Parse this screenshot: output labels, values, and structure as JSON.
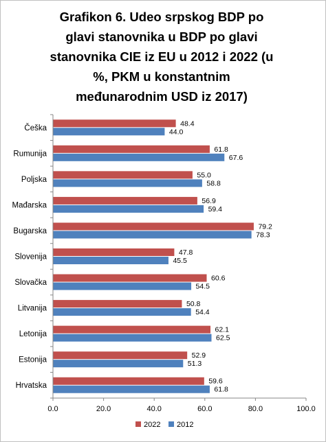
{
  "chart_data": {
    "type": "bar",
    "orientation": "horizontal",
    "title": "Grafikon 6. Udeo srpskog BDP po glavi stanovnika u BDP po glavi stanovnika CIE iz EU u 2012 i 2022 (u %, PKM u konstantnim međunarodnim USD iz 2017)",
    "title_lines": [
      "Grafikon 6. Udeo srpskog BDP po",
      "glavi stanovnika u BDP po glavi",
      "stanovnika CIE iz EU u 2012 i 2022 (u",
      "%, PKM u konstantnim",
      "međunarodnim USD iz 2017)"
    ],
    "categories": [
      "Češka",
      "Rumunija",
      "Poljska",
      "Mađarska",
      "Bugarska",
      "Slovenija",
      "Slovačka",
      "Litvanija",
      "Letonija",
      "Estonija",
      "Hrvatska"
    ],
    "series": [
      {
        "name": "2022",
        "color": "#c0504d",
        "values": [
          48.4,
          61.8,
          55.0,
          56.9,
          79.2,
          47.8,
          60.6,
          50.8,
          62.1,
          52.9,
          59.6
        ],
        "labels": [
          "48.4",
          "61.8",
          "55.0",
          "56.9",
          "79.2",
          "47.8",
          "60.6",
          "50.8",
          "62.1",
          "52.9",
          "59.6"
        ]
      },
      {
        "name": "2012",
        "color": "#4f81bd",
        "values": [
          44.0,
          67.6,
          58.8,
          59.4,
          78.3,
          45.5,
          54.5,
          54.4,
          62.5,
          51.3,
          61.8
        ],
        "labels": [
          "44.0",
          "67.6",
          "58.8",
          "59.4",
          "78.3",
          "45.5",
          "54.5",
          "54.4",
          "62.5",
          "51.3",
          "61.8"
        ]
      }
    ],
    "xlim": [
      0,
      100
    ],
    "xticks": [
      0,
      20,
      40,
      60,
      80,
      100
    ],
    "xtick_labels": [
      "0.0",
      "20.0",
      "40.0",
      "60.0",
      "80.0",
      "100.0"
    ],
    "xlabel": "",
    "ylabel": "",
    "grid": false,
    "legend": "bottom"
  }
}
